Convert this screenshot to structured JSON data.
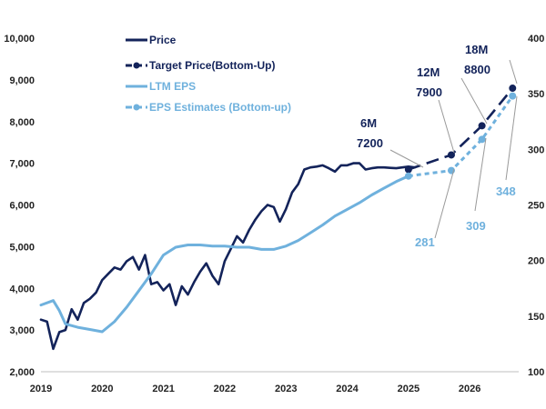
{
  "chart_data": {
    "type": "line",
    "title": "",
    "left_axis": {
      "ylim": [
        2000,
        10000
      ],
      "ticks": [
        2000,
        3000,
        4000,
        5000,
        6000,
        7000,
        8000,
        9000,
        10000
      ],
      "tick_labels": [
        "2,000",
        "3,000",
        "4,000",
        "5,000",
        "6,000",
        "7,000",
        "8,000",
        "9,000",
        "10,000"
      ]
    },
    "right_axis": {
      "ylim": [
        100,
        400
      ],
      "ticks": [
        100,
        150,
        200,
        250,
        300,
        350,
        400
      ],
      "tick_labels": [
        "100",
        "150",
        "200",
        "250",
        "300",
        "350",
        "400"
      ]
    },
    "x_axis": {
      "xlim": [
        2019.0,
        2026.8
      ],
      "ticks": [
        2019,
        2020,
        2021,
        2022,
        2023,
        2024,
        2025,
        2026
      ],
      "tick_labels": [
        "2019",
        "2020",
        "2021",
        "2022",
        "2023",
        "2024",
        "2025",
        "2026"
      ]
    },
    "legend": [
      {
        "label": "Price",
        "color": "#13235a",
        "style": "solid",
        "marker": false
      },
      {
        "label": "Target Price(Bottom-Up)",
        "color": "#13235a",
        "style": "dashed",
        "marker": true
      },
      {
        "label": "LTM EPS",
        "color": "#6fb1dd",
        "style": "solid",
        "marker": false
      },
      {
        "label": "EPS Estimates (Bottom-up)",
        "color": "#6fb1dd",
        "style": "dashed",
        "marker": true
      }
    ],
    "series": [
      {
        "name": "Price",
        "axis": "left",
        "color": "#13235a",
        "x": [
          2019.0,
          2019.1,
          2019.2,
          2019.3,
          2019.4,
          2019.5,
          2019.6,
          2019.7,
          2019.8,
          2019.9,
          2020.0,
          2020.1,
          2020.2,
          2020.3,
          2020.4,
          2020.5,
          2020.6,
          2020.7,
          2020.8,
          2020.9,
          2021.0,
          2021.1,
          2021.2,
          2021.3,
          2021.4,
          2021.5,
          2021.6,
          2021.7,
          2021.8,
          2021.9,
          2022.0,
          2022.1,
          2022.2,
          2022.3,
          2022.4,
          2022.5,
          2022.6,
          2022.7,
          2022.8,
          2022.9,
          2023.0,
          2023.1,
          2023.2,
          2023.3,
          2023.4,
          2023.5,
          2023.6,
          2023.7,
          2023.8,
          2023.9,
          2024.0,
          2024.1,
          2024.2,
          2024.3,
          2024.4,
          2024.5,
          2024.6,
          2024.7,
          2024.8,
          2024.9,
          2025.0,
          2025.1
        ],
        "y": [
          3250,
          3200,
          2550,
          2950,
          3000,
          3500,
          3250,
          3650,
          3750,
          3900,
          4200,
          4350,
          4500,
          4450,
          4650,
          4750,
          4450,
          4800,
          4100,
          4150,
          3950,
          4100,
          3600,
          4050,
          3850,
          4150,
          4400,
          4600,
          4300,
          4100,
          4650,
          4950,
          5250,
          5100,
          5400,
          5650,
          5850,
          6000,
          5950,
          5600,
          5900,
          6300,
          6500,
          6850,
          6900,
          6920,
          6950,
          6880,
          6800,
          6950,
          6950,
          7000,
          7000,
          6850,
          6880,
          6900,
          6900,
          6890,
          6880,
          6900,
          6920,
          6900
        ]
      },
      {
        "name": "Target Price(Bottom-Up)",
        "axis": "left",
        "color": "#13235a",
        "dashed": true,
        "x": [
          2025.0,
          2025.7,
          2026.2,
          2026.7
        ],
        "y": [
          6850,
          7200,
          7900,
          8800
        ]
      },
      {
        "name": "LTM EPS",
        "axis": "right",
        "color": "#6fb1dd",
        "x": [
          2019.0,
          2019.2,
          2019.3,
          2019.4,
          2019.6,
          2019.8,
          2020.0,
          2020.2,
          2020.4,
          2020.6,
          2020.8,
          2021.0,
          2021.2,
          2021.4,
          2021.6,
          2021.8,
          2022.0,
          2022.2,
          2022.4,
          2022.6,
          2022.8,
          2023.0,
          2023.2,
          2023.4,
          2023.6,
          2023.8,
          2024.0,
          2024.2,
          2024.4,
          2024.6,
          2024.8,
          2025.0
        ],
        "y": [
          160,
          164,
          155,
          143,
          140,
          138,
          136,
          145,
          158,
          173,
          188,
          205,
          212,
          214,
          214,
          213,
          213,
          212,
          212,
          210,
          210,
          213,
          218,
          225,
          232,
          240,
          246,
          252,
          259,
          265,
          271,
          276
        ]
      },
      {
        "name": "EPS Estimates (Bottom-up)",
        "axis": "right",
        "color": "#6fb1dd",
        "dashed": true,
        "x": [
          2025.0,
          2025.7,
          2026.2,
          2026.7
        ],
        "y": [
          276,
          281,
          309,
          348
        ]
      }
    ],
    "annotations": {
      "target": [
        {
          "label": "6M",
          "value": "7200"
        },
        {
          "label": "12M",
          "value": "7900"
        },
        {
          "label": "18M",
          "value": "8800"
        }
      ],
      "eps": [
        "281",
        "309",
        "348"
      ]
    }
  }
}
